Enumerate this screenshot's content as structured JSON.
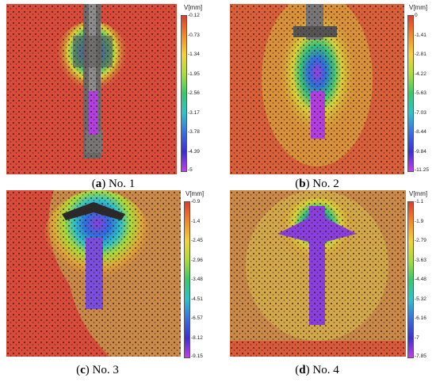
{
  "panels": [
    {
      "caption": {
        "letter": "a",
        "text": "No. 1"
      },
      "scale": {
        "unit": "V[mm]",
        "ticks": [
          "-0.12",
          "-0.73",
          "-1.34",
          "-1.95",
          "-2.56",
          "-3.17",
          "-3.78",
          "-4.39",
          "-5"
        ]
      }
    },
    {
      "caption": {
        "letter": "b",
        "text": "No. 2"
      },
      "scale": {
        "unit": "V[mm]",
        "ticks": [
          "0",
          "-1.41",
          "-2.81",
          "-4.22",
          "-5.63",
          "-7.03",
          "-8.44",
          "-9.84",
          "-11.25"
        ]
      }
    },
    {
      "caption": {
        "letter": "c",
        "text": "No. 3"
      },
      "scale": {
        "unit": "V[mm]",
        "ticks": [
          "-0.9",
          "-1.4",
          "-2.45",
          "-2.96",
          "-3.48",
          "-4.51",
          "-6.57",
          "-8.12",
          "-9.15"
        ]
      }
    },
    {
      "caption": {
        "letter": "d",
        "text": "No. 4"
      },
      "scale": {
        "unit": "V[mm]",
        "ticks": [
          "-1.1",
          "-1.9",
          "-2.79",
          "-3.63",
          "-4.48",
          "-5.32",
          "-6.16",
          "-7",
          "-7.85"
        ]
      }
    }
  ],
  "colors": {
    "background_red": "#d94b3a",
    "background_orange": "#c98a4a",
    "scale_gradient": [
      "#e03b2c",
      "#f08a2a",
      "#f3d23a",
      "#a9dc3a",
      "#39c86a",
      "#2ec3c8",
      "#3a6fe0",
      "#3b2fd0",
      "#c43fe8"
    ]
  }
}
